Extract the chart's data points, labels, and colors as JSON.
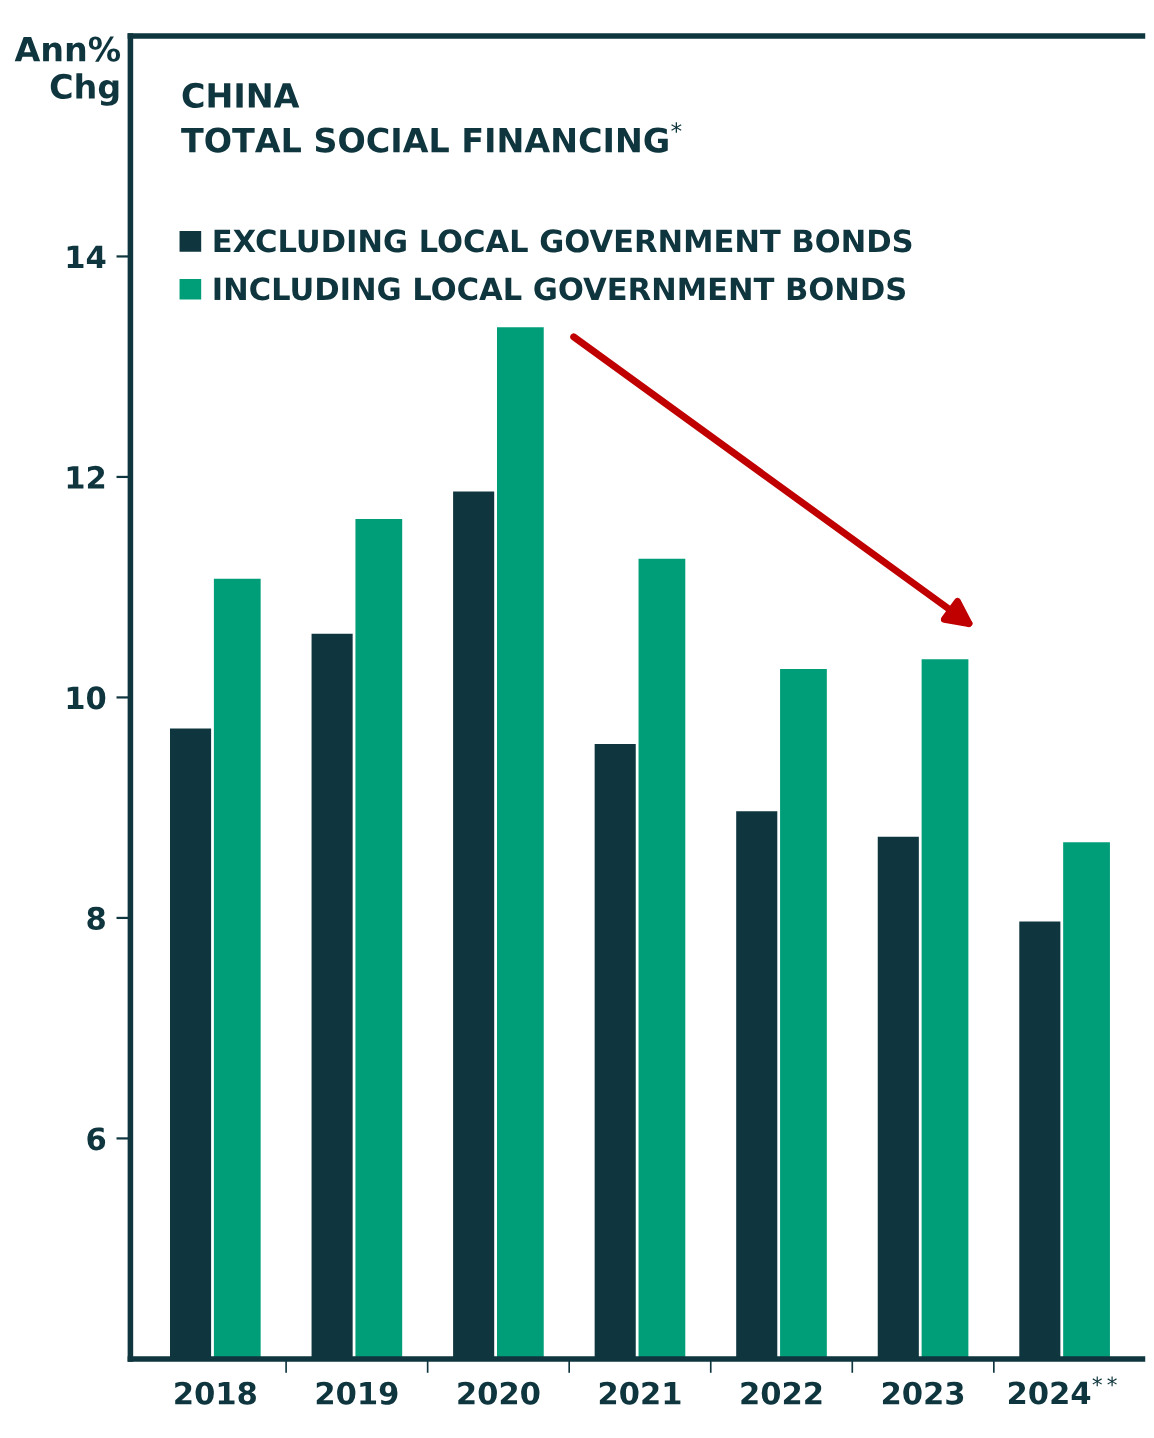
{
  "chart_data": {
    "type": "bar",
    "title": "CHINA\nTOTAL SOCIAL FINANCING$^{*}$",
    "ylabel": "Ann%\nChg",
    "categories": [
      "2018",
      "2019",
      "2020",
      "2021",
      "2022",
      "2023",
      "2024$^{**}$"
    ],
    "series": [
      {
        "name": "EXCLUDING LOCAL GOVERNMENT BONDS",
        "color": "#0f363e",
        "values": [
          9.73,
          10.59,
          11.88,
          9.59,
          8.98,
          8.75,
          7.98
        ]
      },
      {
        "name": "INCLUDING LOCAL GOVERNMENT BONDS",
        "color": "#009e78",
        "values": [
          11.09,
          11.63,
          13.37,
          11.27,
          10.27,
          10.36,
          8.7
        ]
      }
    ],
    "ylim": [
      4,
      16
    ],
    "yticks": [
      6,
      8,
      10,
      12,
      14
    ],
    "grid": false,
    "legend": "top left"
  }
}
